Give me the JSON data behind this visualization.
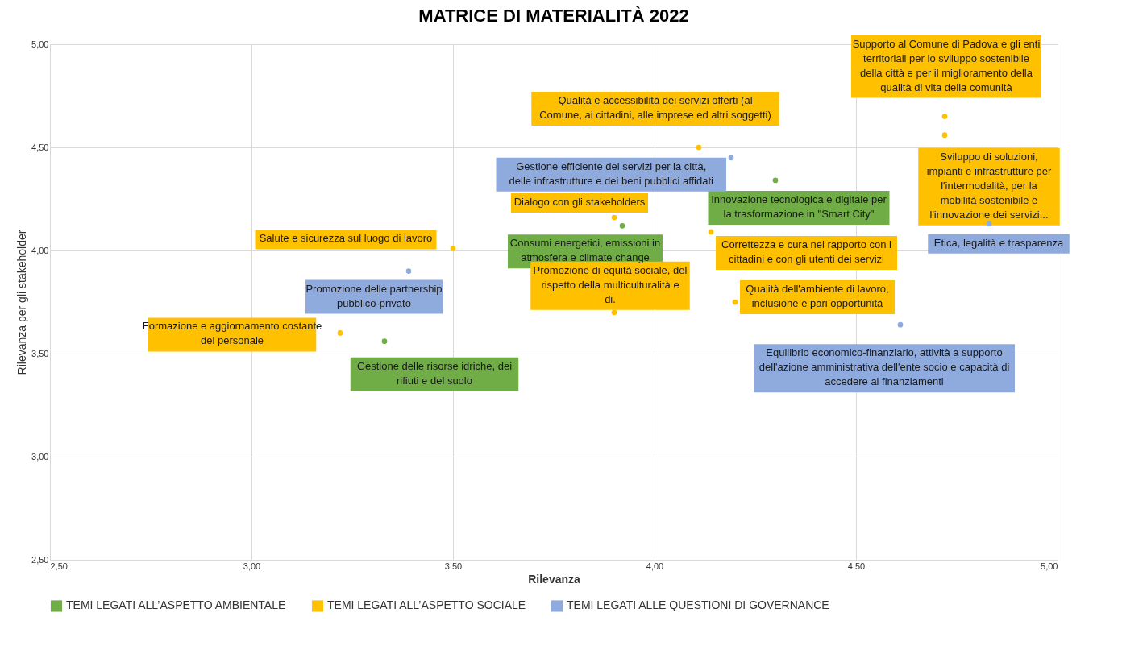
{
  "chart_data": {
    "type": "scatter",
    "title": "MATRICE DI MATERIALITÀ 2022",
    "xlabel": "Rilevanza",
    "ylabel": "Rilevanza per gli stakeholder",
    "xlim": [
      2.5,
      5
    ],
    "ylim": [
      2.5,
      5
    ],
    "xticks": [
      {
        "value": 2.5,
        "label": "2,50"
      },
      {
        "value": 3,
        "label": "3,00"
      },
      {
        "value": 3.5,
        "label": "3,50"
      },
      {
        "value": 4,
        "label": "4,00"
      },
      {
        "value": 4.5,
        "label": "4,50"
      },
      {
        "value": 5,
        "label": "5,00"
      }
    ],
    "yticks": [
      {
        "value": 2.5,
        "label": "2,50"
      },
      {
        "value": 3,
        "label": "3,00"
      },
      {
        "value": 3.5,
        "label": "3,50"
      },
      {
        "value": 4,
        "label": "4,00"
      },
      {
        "value": 4.5,
        "label": "4,50"
      },
      {
        "value": 5,
        "label": "5,00"
      }
    ],
    "grid": true,
    "legend": "bottom",
    "marker": "circle",
    "series": [
      {
        "name": "TEMI LEGATI ALL’ASPETTO AMBIENTALE",
        "color": "#70ad47",
        "x": [
          3.33,
          3.92,
          4.3
        ],
        "values": [
          3.56,
          4.12,
          4.34
        ],
        "value_labels": [
          "Gestione delle risorse idriche, dei rifiuti e del suolo",
          "Consumi energetici, emissioni in atmosfera e climate change",
          "Innovazione tecnologica e digitale per la trasformazione in \"Smart City\""
        ]
      },
      {
        "name": "TEMI LEGATI ALL’ASPETTO SOCIALE",
        "color": "#ffc000",
        "x": [
          3.5,
          3.22,
          3.9,
          3.9,
          4.11,
          4.14,
          4.2,
          4.72,
          4.72
        ],
        "values": [
          4.01,
          3.6,
          4.16,
          3.7,
          4.5,
          4.09,
          3.75,
          4.65,
          4.56
        ],
        "value_labels": [
          "Salute e sicurezza sul luogo di lavoro",
          "Formazione e aggiornamento costante del personale",
          "Dialogo con gli stakeholders",
          "Promozione di equità sociale, del rispetto della multiculturalità e di.",
          "Qualità e accessibilità dei servizi offerti (al Comune, ai cittadini, alle imprese ed altri soggetti)",
          "Correttezza e cura nel rapporto con i cittadini e con gli utenti dei servizi",
          "Qualità dell'ambiente di lavoro, inclusione e pari opportunità",
          "Supporto al Comune di Padova e gli enti territoriali per lo sviluppo sostenibile della città e per il miglioramento della qualità di vita della comunità",
          "Sviluppo di soluzioni, impianti e infrastrutture per l'intermodalità, per la mobilità sostenibile e l'innovazione dei servizi..."
        ]
      },
      {
        "name": "TEMI LEGATI ALLE QUESTIONI DI GOVERNANCE",
        "color": "#8faadc",
        "x": [
          3.39,
          4.19,
          4.61,
          4.83
        ],
        "values": [
          3.9,
          4.45,
          3.64,
          4.13
        ],
        "value_labels": [
          "Promozione delle partnership pubblico-privato",
          "Gestione efficiente dei servizi per la città, delle infrastrutture e dei beni pubblici affidati",
          "Equilibrio economico-finanziario, attività a supporto dell'azione amministrativa dell'ente socio e capacità di accedere ai finanziamenti",
          "Etica, legalità e trasparenza"
        ]
      }
    ]
  }
}
